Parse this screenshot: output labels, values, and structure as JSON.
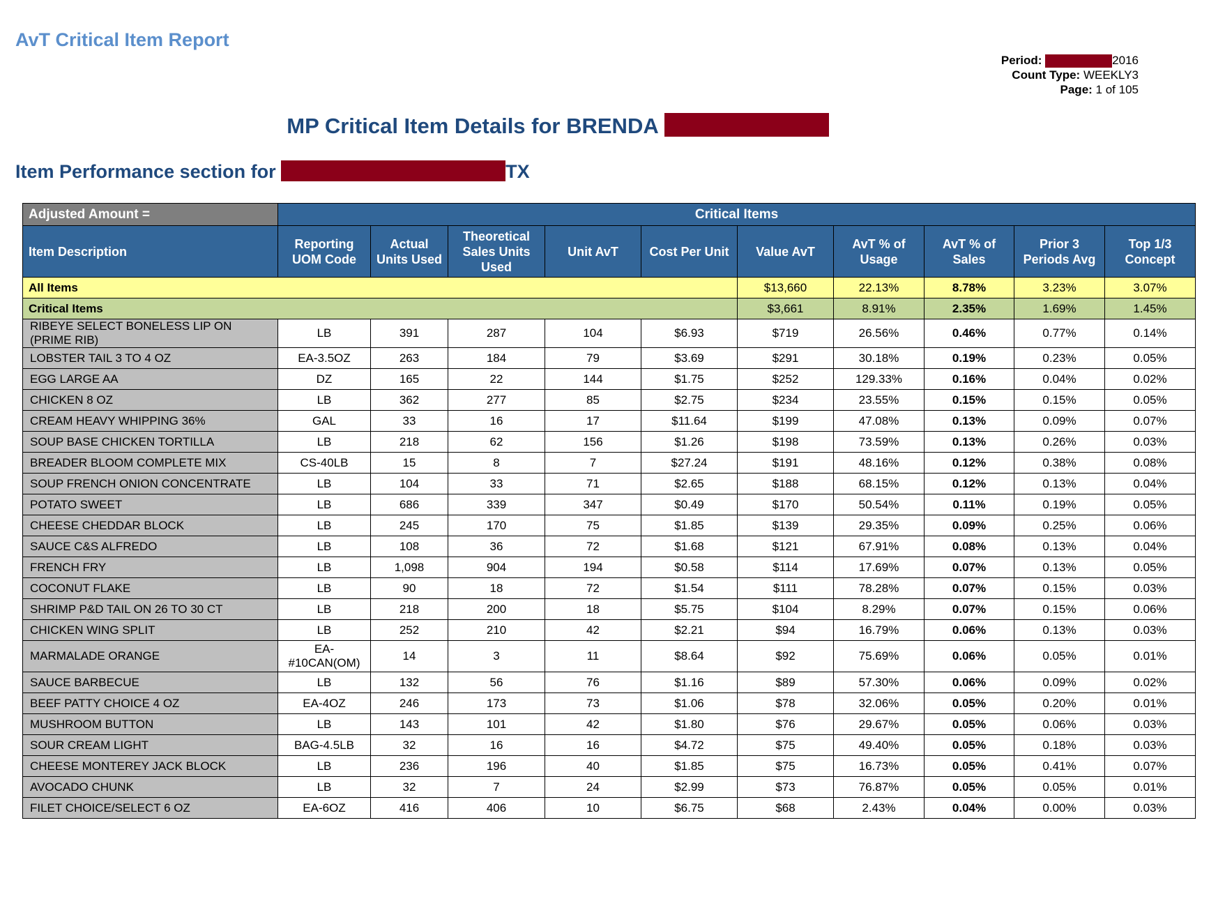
{
  "header": {
    "report_title": "AvT Critical Item Report",
    "period_label": "Period:",
    "period_year": "2016",
    "count_type_label": "Count Type:",
    "count_type_value": "WEEKLY3",
    "page_label": "Page:",
    "page_value": "1 of 105",
    "main_title": "MP Critical Item Details for BRENDA",
    "section_title_prefix": "Item Performance section for",
    "section_title_suffix": "TX"
  },
  "colors": {
    "header_blue": "#336699",
    "title_blue": "#1f497d",
    "all_items_bg": "#ffff99",
    "critical_items_bg": "#c4d79b",
    "redaction": "#8b0019"
  },
  "table": {
    "adjusted_amount_label": "Adjusted Amount =",
    "group_header": "Critical Items",
    "columns": [
      "Item Description",
      "Reporting UOM Code",
      "Actual Units Used",
      "Theoretical Sales Units Used",
      "Unit AvT",
      "Cost Per Unit",
      "Value AvT",
      "AvT % of Usage",
      "AvT % of Sales",
      "Prior 3 Periods Avg",
      "Top 1/3 Concept"
    ],
    "summary": [
      {
        "label": "All Items",
        "value_avt": "$13,660",
        "pct_usage": "22.13%",
        "pct_sales": "8.78%",
        "prior3": "3.23%",
        "top_third": "3.07%"
      },
      {
        "label": "Critical Items",
        "value_avt": "$3,661",
        "pct_usage": "8.91%",
        "pct_sales": "2.35%",
        "prior3": "1.69%",
        "top_third": "1.45%"
      }
    ],
    "rows": [
      {
        "desc": "RIBEYE SELECT BONELESS LIP ON (PRIME RIB)",
        "uom": "LB",
        "actual": "391",
        "theoretical": "287",
        "unit_avt": "104",
        "cost": "$6.93",
        "value_avt": "$719",
        "pct_usage": "26.56%",
        "pct_sales": "0.46%",
        "prior3": "0.77%",
        "top_third": "0.14%"
      },
      {
        "desc": "LOBSTER TAIL 3 TO 4 OZ",
        "uom": "EA-3.5OZ",
        "actual": "263",
        "theoretical": "184",
        "unit_avt": "79",
        "cost": "$3.69",
        "value_avt": "$291",
        "pct_usage": "30.18%",
        "pct_sales": "0.19%",
        "prior3": "0.23%",
        "top_third": "0.05%"
      },
      {
        "desc": "EGG LARGE AA",
        "uom": "DZ",
        "actual": "165",
        "theoretical": "22",
        "unit_avt": "144",
        "cost": "$1.75",
        "value_avt": "$252",
        "pct_usage": "129.33%",
        "pct_sales": "0.16%",
        "prior3": "0.04%",
        "top_third": "0.02%"
      },
      {
        "desc": "CHICKEN 8 OZ",
        "uom": "LB",
        "actual": "362",
        "theoretical": "277",
        "unit_avt": "85",
        "cost": "$2.75",
        "value_avt": "$234",
        "pct_usage": "23.55%",
        "pct_sales": "0.15%",
        "prior3": "0.15%",
        "top_third": "0.05%"
      },
      {
        "desc": "CREAM HEAVY WHIPPING 36%",
        "uom": "GAL",
        "actual": "33",
        "theoretical": "16",
        "unit_avt": "17",
        "cost": "$11.64",
        "value_avt": "$199",
        "pct_usage": "47.08%",
        "pct_sales": "0.13%",
        "prior3": "0.09%",
        "top_third": "0.07%"
      },
      {
        "desc": "SOUP BASE CHICKEN TORTILLA",
        "uom": "LB",
        "actual": "218",
        "theoretical": "62",
        "unit_avt": "156",
        "cost": "$1.26",
        "value_avt": "$198",
        "pct_usage": "73.59%",
        "pct_sales": "0.13%",
        "prior3": "0.26%",
        "top_third": "0.03%"
      },
      {
        "desc": "BREADER BLOOM COMPLETE MIX",
        "uom": "CS-40LB",
        "actual": "15",
        "theoretical": "8",
        "unit_avt": "7",
        "cost": "$27.24",
        "value_avt": "$191",
        "pct_usage": "48.16%",
        "pct_sales": "0.12%",
        "prior3": "0.38%",
        "top_third": "0.08%"
      },
      {
        "desc": "SOUP FRENCH ONION CONCENTRATE",
        "uom": "LB",
        "actual": "104",
        "theoretical": "33",
        "unit_avt": "71",
        "cost": "$2.65",
        "value_avt": "$188",
        "pct_usage": "68.15%",
        "pct_sales": "0.12%",
        "prior3": "0.13%",
        "top_third": "0.04%"
      },
      {
        "desc": "POTATO SWEET",
        "uom": "LB",
        "actual": "686",
        "theoretical": "339",
        "unit_avt": "347",
        "cost": "$0.49",
        "value_avt": "$170",
        "pct_usage": "50.54%",
        "pct_sales": "0.11%",
        "prior3": "0.19%",
        "top_third": "0.05%"
      },
      {
        "desc": "CHEESE CHEDDAR BLOCK",
        "uom": "LB",
        "actual": "245",
        "theoretical": "170",
        "unit_avt": "75",
        "cost": "$1.85",
        "value_avt": "$139",
        "pct_usage": "29.35%",
        "pct_sales": "0.09%",
        "prior3": "0.25%",
        "top_third": "0.06%"
      },
      {
        "desc": "SAUCE C&S ALFREDO",
        "uom": "LB",
        "actual": "108",
        "theoretical": "36",
        "unit_avt": "72",
        "cost": "$1.68",
        "value_avt": "$121",
        "pct_usage": "67.91%",
        "pct_sales": "0.08%",
        "prior3": "0.13%",
        "top_third": "0.04%"
      },
      {
        "desc": "FRENCH FRY",
        "uom": "LB",
        "actual": "1,098",
        "theoretical": "904",
        "unit_avt": "194",
        "cost": "$0.58",
        "value_avt": "$114",
        "pct_usage": "17.69%",
        "pct_sales": "0.07%",
        "prior3": "0.13%",
        "top_third": "0.05%"
      },
      {
        "desc": "COCONUT FLAKE",
        "uom": "LB",
        "actual": "90",
        "theoretical": "18",
        "unit_avt": "72",
        "cost": "$1.54",
        "value_avt": "$111",
        "pct_usage": "78.28%",
        "pct_sales": "0.07%",
        "prior3": "0.15%",
        "top_third": "0.03%"
      },
      {
        "desc": "SHRIMP P&D TAIL ON 26 TO 30 CT",
        "uom": "LB",
        "actual": "218",
        "theoretical": "200",
        "unit_avt": "18",
        "cost": "$5.75",
        "value_avt": "$104",
        "pct_usage": "8.29%",
        "pct_sales": "0.07%",
        "prior3": "0.15%",
        "top_third": "0.06%"
      },
      {
        "desc": "CHICKEN WING SPLIT",
        "uom": "LB",
        "actual": "252",
        "theoretical": "210",
        "unit_avt": "42",
        "cost": "$2.21",
        "value_avt": "$94",
        "pct_usage": "16.79%",
        "pct_sales": "0.06%",
        "prior3": "0.13%",
        "top_third": "0.03%"
      },
      {
        "desc": "MARMALADE ORANGE",
        "uom": "EA-#10CAN(OM)",
        "actual": "14",
        "theoretical": "3",
        "unit_avt": "11",
        "cost": "$8.64",
        "value_avt": "$92",
        "pct_usage": "75.69%",
        "pct_sales": "0.06%",
        "prior3": "0.05%",
        "top_third": "0.01%"
      },
      {
        "desc": "SAUCE BARBECUE",
        "uom": "LB",
        "actual": "132",
        "theoretical": "56",
        "unit_avt": "76",
        "cost": "$1.16",
        "value_avt": "$89",
        "pct_usage": "57.30%",
        "pct_sales": "0.06%",
        "prior3": "0.09%",
        "top_third": "0.02%"
      },
      {
        "desc": "BEEF PATTY CHOICE 4 OZ",
        "uom": "EA-4OZ",
        "actual": "246",
        "theoretical": "173",
        "unit_avt": "73",
        "cost": "$1.06",
        "value_avt": "$78",
        "pct_usage": "32.06%",
        "pct_sales": "0.05%",
        "prior3": "0.20%",
        "top_third": "0.01%"
      },
      {
        "desc": "MUSHROOM BUTTON",
        "uom": "LB",
        "actual": "143",
        "theoretical": "101",
        "unit_avt": "42",
        "cost": "$1.80",
        "value_avt": "$76",
        "pct_usage": "29.67%",
        "pct_sales": "0.05%",
        "prior3": "0.06%",
        "top_third": "0.03%"
      },
      {
        "desc": "SOUR CREAM LIGHT",
        "uom": "BAG-4.5LB",
        "actual": "32",
        "theoretical": "16",
        "unit_avt": "16",
        "cost": "$4.72",
        "value_avt": "$75",
        "pct_usage": "49.40%",
        "pct_sales": "0.05%",
        "prior3": "0.18%",
        "top_third": "0.03%"
      },
      {
        "desc": "CHEESE MONTEREY JACK BLOCK",
        "uom": "LB",
        "actual": "236",
        "theoretical": "196",
        "unit_avt": "40",
        "cost": "$1.85",
        "value_avt": "$75",
        "pct_usage": "16.73%",
        "pct_sales": "0.05%",
        "prior3": "0.41%",
        "top_third": "0.07%"
      },
      {
        "desc": "AVOCADO CHUNK",
        "uom": "LB",
        "actual": "32",
        "theoretical": "7",
        "unit_avt": "24",
        "cost": "$2.99",
        "value_avt": "$73",
        "pct_usage": "76.87%",
        "pct_sales": "0.05%",
        "prior3": "0.05%",
        "top_third": "0.01%"
      },
      {
        "desc": "FILET CHOICE/SELECT 6 OZ",
        "uom": "EA-6OZ",
        "actual": "416",
        "theoretical": "406",
        "unit_avt": "10",
        "cost": "$6.75",
        "value_avt": "$68",
        "pct_usage": "2.43%",
        "pct_sales": "0.04%",
        "prior3": "0.00%",
        "top_third": "0.03%"
      }
    ]
  }
}
